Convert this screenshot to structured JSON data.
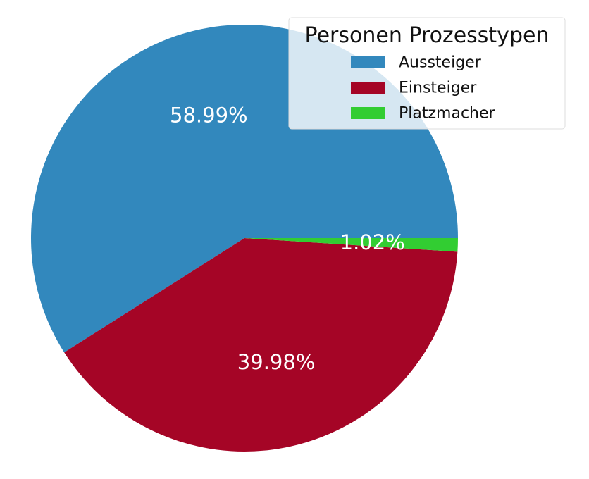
{
  "chart_data": {
    "type": "pie",
    "legend_title": "Personen Prozesstypen",
    "legend_placement": "top-right",
    "series": [
      {
        "name": "Aussteiger",
        "value": 58.99,
        "label": "58.99%",
        "color": "#3288bd"
      },
      {
        "name": "Einsteiger",
        "value": 39.98,
        "label": "39.98%",
        "color": "#a50526"
      },
      {
        "name": "Platzmacher",
        "value": 1.02,
        "label": "1.02%",
        "color": "#32cd32"
      }
    ]
  }
}
